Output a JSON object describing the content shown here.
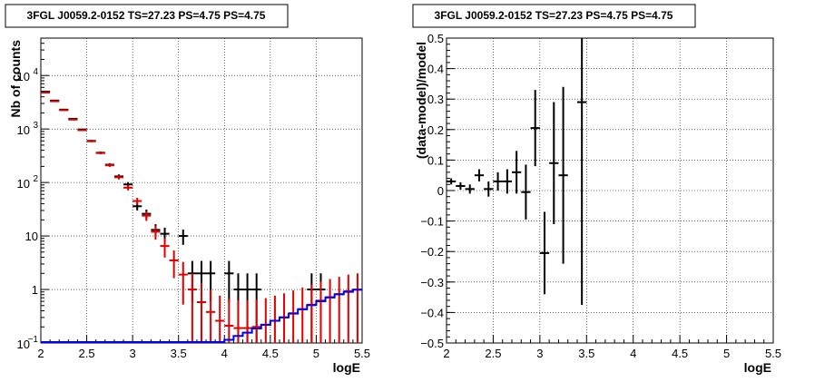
{
  "chart_data": [
    {
      "type": "scatter",
      "title": "3FGL J0059.2-0152 TS=27.23 PS=4.75 PS=4.75",
      "xlabel": "logE",
      "ylabel": "Nb of counts",
      "xlim": [
        2,
        5.5
      ],
      "ylim": [
        0.1,
        50000
      ],
      "yscale": "log",
      "grid": true,
      "xticks": [
        "2",
        "2.5",
        "3",
        "3.5",
        "4",
        "4.5",
        "5",
        "5.5"
      ],
      "yticks": [
        {
          "value": 0.1,
          "base": "10",
          "exp": "−1"
        },
        {
          "value": 1,
          "label": "1"
        },
        {
          "value": 10,
          "label": "10"
        },
        {
          "value": 100,
          "base": "10",
          "exp": "2"
        },
        {
          "value": 1000,
          "base": "10",
          "exp": "3"
        },
        {
          "value": 10000,
          "base": "10",
          "exp": "4"
        }
      ],
      "series": [
        {
          "kind": "data",
          "color": "#000000",
          "points": [
            {
              "x": 2.05,
              "y": 5000
            },
            {
              "x": 2.15,
              "y": 3400
            },
            {
              "x": 2.25,
              "y": 2300
            },
            {
              "x": 2.35,
              "y": 1550
            },
            {
              "x": 2.45,
              "y": 980
            },
            {
              "x": 2.55,
              "y": 600
            },
            {
              "x": 2.65,
              "y": 360
            },
            {
              "x": 2.75,
              "y": 215
            },
            {
              "x": 2.85,
              "y": 130
            },
            {
              "x": 2.95,
              "y": 92
            },
            {
              "x": 3.05,
              "y": 36
            },
            {
              "x": 3.15,
              "y": 26
            },
            {
              "x": 3.25,
              "y": 13
            },
            {
              "x": 3.35,
              "y": 11
            },
            {
              "x": 3.55,
              "y": 10
            },
            {
              "x": 3.65,
              "y": 2
            },
            {
              "x": 3.75,
              "y": 2
            },
            {
              "x": 3.85,
              "y": 2
            },
            {
              "x": 4.05,
              "y": 2
            },
            {
              "x": 4.15,
              "y": 1
            },
            {
              "x": 4.25,
              "y": 1
            },
            {
              "x": 4.35,
              "y": 1
            },
            {
              "x": 4.95,
              "y": 1
            },
            {
              "x": 5.05,
              "y": 1
            }
          ]
        },
        {
          "kind": "model",
          "color": "#e00000",
          "points": [
            {
              "x": 2.05,
              "y": 4800
            },
            {
              "x": 2.15,
              "y": 3300
            },
            {
              "x": 2.25,
              "y": 2250
            },
            {
              "x": 2.35,
              "y": 1500
            },
            {
              "x": 2.45,
              "y": 950
            },
            {
              "x": 2.55,
              "y": 590
            },
            {
              "x": 2.65,
              "y": 355
            },
            {
              "x": 2.75,
              "y": 210
            },
            {
              "x": 2.85,
              "y": 125
            },
            {
              "x": 2.95,
              "y": 80
            },
            {
              "x": 3.05,
              "y": 45
            },
            {
              "x": 3.15,
              "y": 24
            },
            {
              "x": 3.25,
              "y": 12
            },
            {
              "x": 3.35,
              "y": 6.5
            },
            {
              "x": 3.45,
              "y": 3.5
            },
            {
              "x": 3.55,
              "y": 1.9
            },
            {
              "x": 3.65,
              "y": 1.0
            },
            {
              "x": 3.75,
              "y": 0.58
            },
            {
              "x": 3.85,
              "y": 0.38
            },
            {
              "x": 3.95,
              "y": 0.26
            },
            {
              "x": 4.05,
              "y": 0.21
            },
            {
              "x": 4.15,
              "y": 0.19
            },
            {
              "x": 4.25,
              "y": 0.19
            },
            {
              "x": 4.35,
              "y": 0.2
            },
            {
              "x": 4.45,
              "y": 0.22
            },
            {
              "x": 4.55,
              "y": 0.26
            },
            {
              "x": 4.65,
              "y": 0.3
            },
            {
              "x": 4.75,
              "y": 0.36
            },
            {
              "x": 4.85,
              "y": 0.43
            },
            {
              "x": 4.95,
              "y": 0.52
            },
            {
              "x": 5.05,
              "y": 0.62
            },
            {
              "x": 5.15,
              "y": 0.72
            },
            {
              "x": 5.25,
              "y": 0.82
            },
            {
              "x": 5.35,
              "y": 0.93
            },
            {
              "x": 5.45,
              "y": 1.0
            }
          ]
        },
        {
          "kind": "background-step",
          "color": "#0000ee",
          "points": [
            {
              "x": 2.0,
              "y": 0.1
            },
            {
              "x": 3.9,
              "y": 0.1
            },
            {
              "x": 4.0,
              "y": 0.11
            },
            {
              "x": 4.1,
              "y": 0.13
            },
            {
              "x": 4.2,
              "y": 0.15
            },
            {
              "x": 4.3,
              "y": 0.18
            },
            {
              "x": 4.4,
              "y": 0.21
            },
            {
              "x": 4.5,
              "y": 0.25
            },
            {
              "x": 4.6,
              "y": 0.29
            },
            {
              "x": 4.7,
              "y": 0.34
            },
            {
              "x": 4.8,
              "y": 0.41
            },
            {
              "x": 4.9,
              "y": 0.49
            },
            {
              "x": 5.0,
              "y": 0.58
            },
            {
              "x": 5.1,
              "y": 0.68
            },
            {
              "x": 5.2,
              "y": 0.78
            },
            {
              "x": 5.3,
              "y": 0.87
            },
            {
              "x": 5.4,
              "y": 0.95
            },
            {
              "x": 5.5,
              "y": 0.95
            }
          ]
        }
      ]
    },
    {
      "type": "scatter",
      "title": "3FGL J0059.2-0152 TS=27.23 PS=4.75 PS=4.75",
      "xlabel": "logE",
      "ylabel": "(data-model)/model",
      "xlim": [
        2,
        5.5
      ],
      "ylim": [
        -0.5,
        0.5
      ],
      "grid": true,
      "xticks": [
        "2",
        "2.5",
        "3",
        "3.5",
        "4",
        "4.5",
        "5",
        "5.5"
      ],
      "yticks": [
        "0.5",
        "0.4",
        "0.3",
        "0.2",
        "0.1",
        "0",
        "−0.1",
        "−0.2",
        "−0.3",
        "−0.4",
        "−0.5"
      ],
      "series": [
        {
          "color": "#000000",
          "points": [
            {
              "x": 2.05,
              "y": 0.03,
              "err": 0.01
            },
            {
              "x": 2.15,
              "y": 0.015,
              "err": 0.012
            },
            {
              "x": 2.25,
              "y": 0.005,
              "err": 0.015
            },
            {
              "x": 2.35,
              "y": 0.05,
              "err": 0.02
            },
            {
              "x": 2.45,
              "y": 0.005,
              "err": 0.025
            },
            {
              "x": 2.55,
              "y": 0.03,
              "err": 0.03
            },
            {
              "x": 2.65,
              "y": 0.03,
              "err": 0.04
            },
            {
              "x": 2.75,
              "y": 0.06,
              "err": 0.07
            },
            {
              "x": 2.85,
              "y": -0.005,
              "err": 0.09
            },
            {
              "x": 2.95,
              "y": 0.205,
              "err": 0.125
            },
            {
              "x": 3.05,
              "y": -0.205,
              "err": 0.135
            },
            {
              "x": 3.15,
              "y": 0.09,
              "err": 0.2
            },
            {
              "x": 3.25,
              "y": 0.05,
              "err": 0.29
            },
            {
              "x": 3.45,
              "y": 0.29,
              "err": 0.665
            }
          ]
        }
      ]
    }
  ]
}
